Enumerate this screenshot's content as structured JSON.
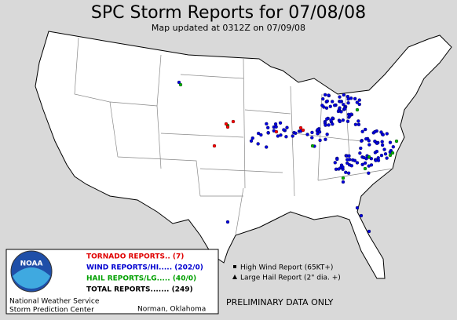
{
  "header": {
    "title": "SPC Storm Reports for 07/08/08",
    "subtitle": "Map updated at 0312Z on 07/09/08"
  },
  "legend": {
    "tornado": "TORNADO REPORTS.. (7)",
    "wind": "WIND REPORTS/HI..... (202/0)",
    "hail": "HAIL REPORTS/LG..... (40/0)",
    "total": "TOTAL REPORTS....... (249)",
    "high_wind": "High Wind Report (65KT+)",
    "large_hail": "Large Hail Report (2\" dia. +)"
  },
  "logo": "NOAA",
  "footer": {
    "agency": "National Weather Service",
    "center": "Storm Prediction Center",
    "location": "Norman, Oklahoma",
    "note": "PRELIMINARY DATA ONLY"
  }
}
